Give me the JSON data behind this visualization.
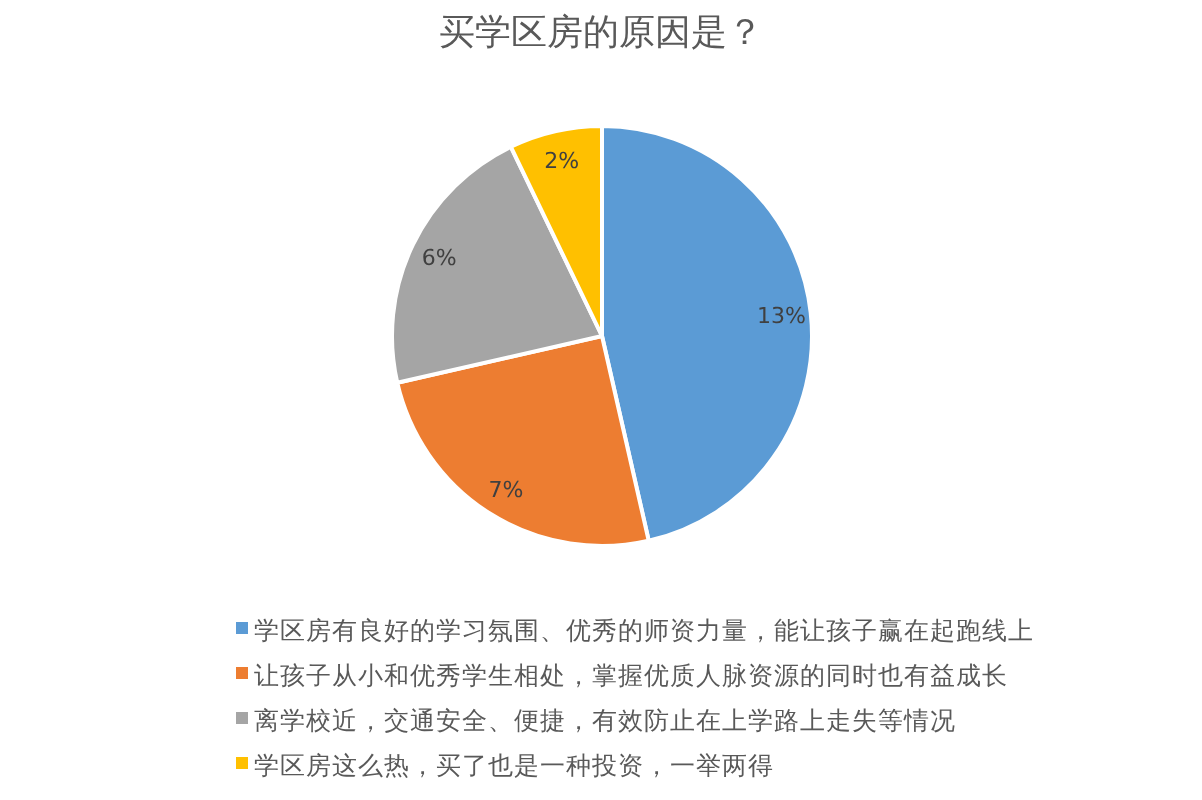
{
  "chart_data": {
    "type": "pie",
    "title": "买学区房的原因是？",
    "categories": [
      "学区房有良好的学习氛围、优秀的师资力量，能让孩子赢在起跑线上",
      "让孩子从小和优秀学生相处，掌握优质人脉资源的同时也有益成长",
      "离学校近，交通安全、便捷，有效防止在上学路上走失等情况",
      "学区房这么热，买了也是一种投资，一举两得"
    ],
    "values": [
      13,
      7,
      6,
      2
    ],
    "colors": [
      "#5b9bd5",
      "#ed7d31",
      "#a5a5a5",
      "#ffc000"
    ],
    "value_labels": [
      "13%",
      "7%",
      "6%",
      "2%"
    ],
    "legend": "bottom"
  }
}
